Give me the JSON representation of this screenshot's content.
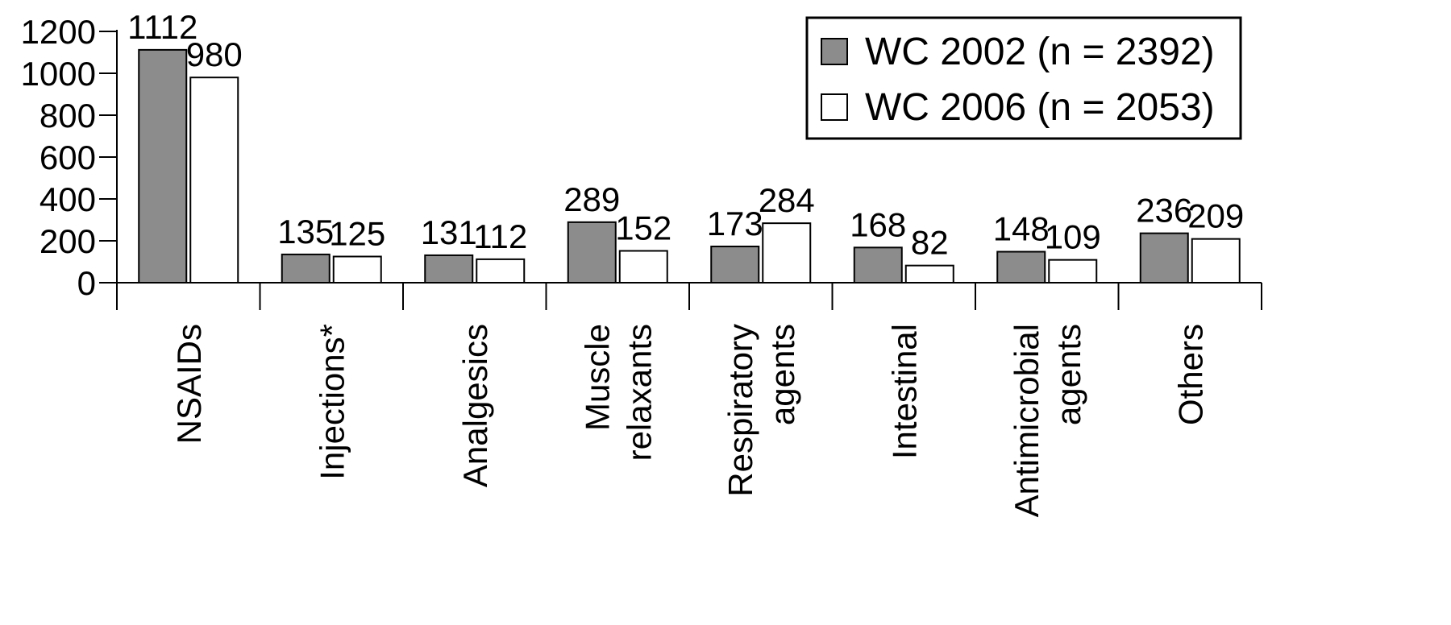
{
  "chart_data": {
    "type": "bar",
    "categories": [
      [
        "NSAIDs"
      ],
      [
        "Injections*"
      ],
      [
        "Analgesics"
      ],
      [
        "Muscle",
        "relaxants"
      ],
      [
        "Respiratory",
        "agents"
      ],
      [
        "Intestinal"
      ],
      [
        "Antimicrobial",
        "agents"
      ],
      [
        "Others"
      ]
    ],
    "series": [
      {
        "name": "WC 2002 (n = 2392)",
        "values": [
          1112,
          135,
          131,
          289,
          173,
          168,
          148,
          236
        ],
        "color": "#8c8c8c"
      },
      {
        "name": "WC 2006 (n = 2053)",
        "values": [
          980,
          125,
          112,
          152,
          284,
          82,
          109,
          209
        ],
        "color": "#ffffff"
      }
    ],
    "yticks": [
      0,
      200,
      400,
      600,
      800,
      1000,
      1200
    ],
    "ylim": [
      0,
      1200
    ],
    "title": "",
    "xlabel": "",
    "ylabel": "",
    "legend_position": "top-right",
    "grid": false
  }
}
